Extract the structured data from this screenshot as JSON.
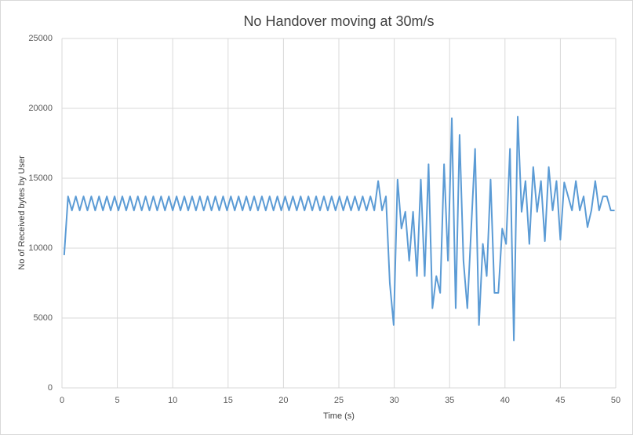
{
  "chart_data": {
    "type": "line",
    "title": "No Handover moving at 30m/s",
    "x_label": "Time (s)",
    "y_label": "No of Received bytes by User",
    "x": [
      0.2,
      0.55,
      0.9,
      1.25,
      1.6,
      1.95,
      2.3,
      2.65,
      3,
      3.35,
      3.7,
      4.05,
      4.4,
      4.75,
      5.1,
      5.45,
      5.8,
      6.15,
      6.5,
      6.85,
      7.2,
      7.55,
      7.9,
      8.25,
      8.6,
      8.95,
      9.3,
      9.65,
      10,
      10.35,
      10.7,
      11.05,
      11.4,
      11.75,
      12.1,
      12.45,
      12.8,
      13.15,
      13.5,
      13.85,
      14.2,
      14.55,
      14.9,
      15.25,
      15.6,
      15.95,
      16.3,
      16.65,
      17,
      17.35,
      17.7,
      18.05,
      18.4,
      18.75,
      19.1,
      19.45,
      19.8,
      20.15,
      20.5,
      20.85,
      21.2,
      21.55,
      21.9,
      22.25,
      22.6,
      22.95,
      23.3,
      23.65,
      24,
      24.35,
      24.7,
      25.05,
      25.4,
      25.75,
      26.1,
      26.45,
      26.8,
      27.15,
      27.5,
      27.85,
      28.2,
      28.55,
      28.9,
      29.25,
      29.6,
      29.95,
      30.3,
      30.65,
      31,
      31.35,
      31.7,
      32.05,
      32.4,
      32.75,
      33.1,
      33.45,
      33.8,
      34.15,
      34.5,
      34.85,
      35.2,
      35.55,
      35.9,
      36.25,
      36.6,
      36.95,
      37.3,
      37.65,
      38,
      38.35,
      38.7,
      39.05,
      39.4,
      39.75,
      40.1,
      40.45,
      40.8,
      41.15,
      41.5,
      41.85,
      42.2,
      42.55,
      42.9,
      43.25,
      43.6,
      43.95,
      44.3,
      44.65,
      45,
      45.35,
      45.7,
      46.05,
      46.4,
      46.75,
      47.1,
      47.45,
      47.8,
      48.15,
      48.5,
      48.85,
      49.2,
      49.55,
      49.9
    ],
    "values": [
      9500,
      13700,
      12700,
      13700,
      12700,
      13700,
      12700,
      13700,
      12700,
      13700,
      12700,
      13700,
      12700,
      13700,
      12700,
      13700,
      12700,
      13700,
      12700,
      13700,
      12700,
      13700,
      12700,
      13700,
      12700,
      13700,
      12700,
      13700,
      12700,
      13700,
      12700,
      13700,
      12700,
      13700,
      12700,
      13700,
      12700,
      13700,
      12700,
      13700,
      12700,
      13700,
      12700,
      13700,
      12700,
      13700,
      12700,
      13700,
      12700,
      13700,
      12700,
      13700,
      12700,
      13700,
      12700,
      13700,
      12700,
      13700,
      12700,
      13700,
      12700,
      13700,
      12700,
      13700,
      12700,
      13700,
      12700,
      13700,
      12700,
      13700,
      12700,
      13700,
      12700,
      13700,
      12700,
      13700,
      12700,
      13700,
      12700,
      13700,
      12700,
      14800,
      12700,
      13700,
      7500,
      4500,
      14900,
      11400,
      12600,
      9100,
      12600,
      8000,
      14900,
      8000,
      16000,
      5700,
      8000,
      6800,
      16000,
      9100,
      19300,
      5700,
      18100,
      9100,
      5700,
      11400,
      17100,
      4500,
      10300,
      8000,
      14900,
      6800,
      6800,
      11400,
      10300,
      17100,
      3400,
      19400,
      12600,
      14800,
      10300,
      15800,
      12600,
      14800,
      10500,
      15800,
      12700,
      14800,
      10600,
      14700,
      13700,
      12700,
      14800,
      12700,
      13700,
      11500,
      12700,
      14800,
      12700,
      13700,
      13700,
      12700,
      12700
    ],
    "color": "#5b9bd5",
    "xlim": [
      0,
      50
    ],
    "xticks": [
      0,
      5,
      10,
      15,
      20,
      25,
      30,
      35,
      40,
      45,
      50
    ],
    "ylim": [
      0,
      25000
    ],
    "yticks": [
      0,
      5000,
      10000,
      15000,
      20000,
      25000
    ],
    "grid": true
  }
}
